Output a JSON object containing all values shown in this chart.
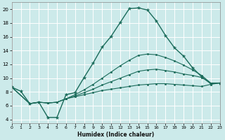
{
  "xlabel": "Humidex (Indice chaleur)",
  "bg_color": "#cceaea",
  "grid_color": "#ffffff",
  "line_color": "#1a6b5a",
  "xlim": [
    0,
    23
  ],
  "ylim": [
    3.5,
    21
  ],
  "xticks": [
    0,
    1,
    2,
    3,
    4,
    5,
    6,
    7,
    8,
    9,
    10,
    11,
    12,
    13,
    14,
    15,
    16,
    17,
    18,
    19,
    20,
    21,
    22,
    23
  ],
  "yticks": [
    4,
    6,
    8,
    10,
    12,
    14,
    16,
    18,
    20
  ],
  "curves": [
    {
      "x": [
        0,
        1,
        2,
        3,
        4,
        5,
        6,
        7,
        8,
        9,
        10,
        11,
        12,
        13,
        14,
        15,
        16,
        17,
        18,
        19,
        20,
        21,
        22,
        23
      ],
      "y": [
        8.7,
        8.1,
        6.3,
        6.5,
        4.3,
        4.3,
        7.6,
        7.9,
        10.1,
        12.2,
        14.5,
        16.1,
        18.1,
        20.1,
        20.2,
        19.9,
        18.3,
        16.2,
        14.4,
        13.2,
        11.5,
        10.2,
        9.2,
        9.3
      ],
      "marker": "*",
      "markersize": 3.5,
      "linewidth": 1.0
    },
    {
      "x": [
        0,
        2,
        3,
        4,
        5,
        6,
        7,
        8,
        9,
        10,
        11,
        12,
        13,
        14,
        15,
        16,
        17,
        18,
        19,
        20,
        21,
        22,
        23
      ],
      "y": [
        8.7,
        6.3,
        6.5,
        6.4,
        6.5,
        7.0,
        7.3,
        7.6,
        7.9,
        8.2,
        8.4,
        8.6,
        8.8,
        9.0,
        9.1,
        9.2,
        9.2,
        9.1,
        9.0,
        8.9,
        8.8,
        9.1,
        9.3
      ],
      "marker": "o",
      "markersize": 1.8,
      "linewidth": 0.8
    },
    {
      "x": [
        0,
        2,
        3,
        4,
        5,
        6,
        7,
        8,
        9,
        10,
        11,
        12,
        13,
        14,
        15,
        16,
        17,
        18,
        19,
        20,
        21,
        22,
        23
      ],
      "y": [
        8.7,
        6.3,
        6.5,
        6.4,
        6.5,
        7.0,
        7.4,
        7.9,
        8.4,
        9.0,
        9.5,
        10.0,
        10.5,
        11.0,
        11.2,
        11.3,
        11.1,
        10.9,
        10.6,
        10.4,
        10.1,
        9.3,
        9.3
      ],
      "marker": "o",
      "markersize": 1.8,
      "linewidth": 0.8
    },
    {
      "x": [
        0,
        2,
        3,
        4,
        5,
        6,
        7,
        8,
        9,
        10,
        11,
        12,
        13,
        14,
        15,
        16,
        17,
        18,
        19,
        20,
        21,
        22,
        23
      ],
      "y": [
        8.7,
        6.3,
        6.5,
        6.4,
        6.5,
        7.0,
        7.6,
        8.3,
        9.1,
        10.0,
        10.9,
        11.8,
        12.6,
        13.3,
        13.5,
        13.4,
        13.0,
        12.5,
        11.9,
        11.2,
        10.4,
        9.3,
        9.3
      ],
      "marker": "o",
      "markersize": 1.8,
      "linewidth": 0.8
    }
  ]
}
